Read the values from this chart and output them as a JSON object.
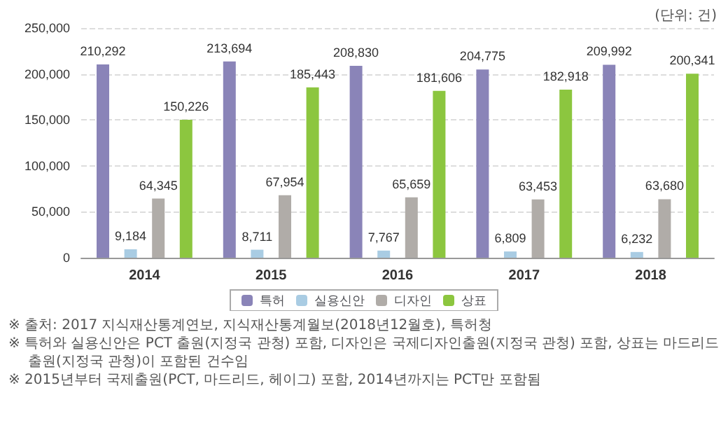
{
  "chart_data": {
    "type": "bar",
    "categories": [
      "2014",
      "2015",
      "2016",
      "2017",
      "2018"
    ],
    "series": [
      {
        "name": "특허",
        "color": "#8a84b8",
        "values": [
          210292,
          213694,
          208830,
          204775,
          209992
        ],
        "value_labels": [
          "210,292",
          "213,694",
          "208,830",
          "204,775",
          "209,992"
        ]
      },
      {
        "name": "실용신안",
        "color": "#a9cce3",
        "values": [
          9184,
          8711,
          7767,
          6809,
          6232
        ],
        "value_labels": [
          "9,184",
          "8,711",
          "7,767",
          "6,809",
          "6,232"
        ]
      },
      {
        "name": "디자인",
        "color": "#b0aca8",
        "values": [
          64345,
          67954,
          65659,
          63453,
          63680
        ],
        "value_labels": [
          "64,345",
          "67,954",
          "65,659",
          "63,453",
          "63,680"
        ]
      },
      {
        "name": "상표",
        "color": "#8cc63f",
        "values": [
          150226,
          185443,
          181606,
          182918,
          200341
        ],
        "value_labels": [
          "150,226",
          "185,443",
          "181,606",
          "182,918",
          "200,341"
        ]
      }
    ],
    "ylim": [
      0,
      250000
    ],
    "yticks": [
      0,
      {
        "value": 50000,
        "label": "50,000"
      },
      {
        "value": 100000,
        "label": "100,000"
      },
      {
        "value": 150000,
        "label": "150,000"
      },
      {
        "value": 200000,
        "label": "200,000"
      },
      {
        "value": 250000,
        "label": "250,000"
      }
    ],
    "grid": "y",
    "legend": "bottom",
    "annotations": [
      "(단위: 건)",
      "※ 출처: 2017 지식재산통계연보, 지식재산통계월보(2018년12월호), 특허청",
      "※ 특허와 실용신안은 PCT 출원(지정국 관청) 포함, 디자인은 국제디자인출원(지정국 관청) 포함, 상표는 마드리드출원(지정국 관청)이 포함된 건수임",
      "※ 2015년부터 국제출원(PCT, 마드리드, 헤이그) 포함, 2014년까지는 PCT만 포함됨"
    ]
  }
}
